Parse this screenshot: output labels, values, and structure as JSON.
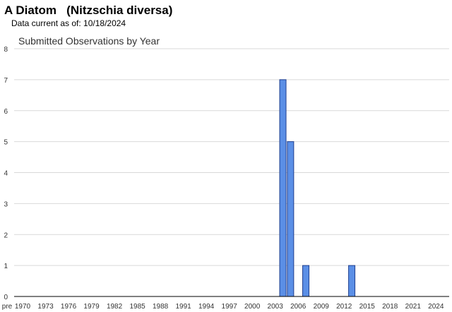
{
  "header": {
    "title": "A Diatom   (Nitzschia diversa)",
    "data_current": "Data current as of: 10/18/2024"
  },
  "chart_data": {
    "type": "bar",
    "title": "Submitted Observations by Year",
    "xlabel": "",
    "ylabel": "",
    "ylim": [
      0,
      8
    ],
    "yticks": [
      0,
      1,
      2,
      3,
      4,
      5,
      6,
      7,
      8
    ],
    "grid": true,
    "legend": "none",
    "x_tick_labels": [
      "pre",
      "1970",
      "1973",
      "1976",
      "1979",
      "1982",
      "1985",
      "1988",
      "1991",
      "1994",
      "1997",
      "2000",
      "2003",
      "2006",
      "2009",
      "2012",
      "2015",
      "2018",
      "2021",
      "2024"
    ],
    "categories": [
      "pre",
      "1970",
      "1971",
      "1972",
      "1973",
      "1974",
      "1975",
      "1976",
      "1977",
      "1978",
      "1979",
      "1980",
      "1981",
      "1982",
      "1983",
      "1984",
      "1985",
      "1986",
      "1987",
      "1988",
      "1989",
      "1990",
      "1991",
      "1992",
      "1993",
      "1994",
      "1995",
      "1996",
      "1997",
      "1998",
      "1999",
      "2000",
      "2001",
      "2002",
      "2003",
      "2004",
      "2005",
      "2006",
      "2007",
      "2008",
      "2009",
      "2010",
      "2011",
      "2012",
      "2013",
      "2014",
      "2015",
      "2016",
      "2017",
      "2018",
      "2019",
      "2020",
      "2021",
      "2022",
      "2023",
      "2024"
    ],
    "values": [
      0,
      0,
      0,
      0,
      0,
      0,
      0,
      0,
      0,
      0,
      0,
      0,
      0,
      0,
      0,
      0,
      0,
      0,
      0,
      0,
      0,
      0,
      0,
      0,
      0,
      0,
      0,
      0,
      0,
      0,
      0,
      0,
      0,
      0,
      0,
      7,
      5,
      0,
      1,
      0,
      0,
      0,
      0,
      0,
      1,
      0,
      0,
      0,
      0,
      0,
      0,
      0,
      0,
      0,
      0,
      0
    ],
    "colors": {
      "bar_fill": "#5b8fe6",
      "bar_stroke": "#1f3f8f",
      "grid": "#d9d9d9",
      "axis": "#000000"
    }
  }
}
